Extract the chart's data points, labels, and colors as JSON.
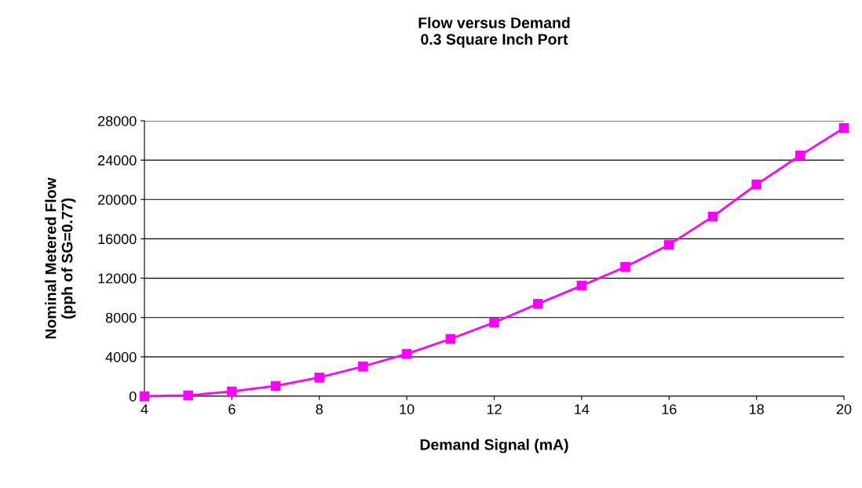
{
  "chart_data": {
    "type": "line",
    "title": "Flow versus Demand\n0.3 Square Inch Port",
    "xlabel": "Demand Signal (mA)",
    "ylabel": "Nominal Metered Flow\n(pph of SG=0.77)",
    "x": [
      4,
      5,
      6,
      7,
      8,
      9,
      10,
      11,
      12,
      13,
      14,
      15,
      16,
      17,
      18,
      19,
      20
    ],
    "series": [
      {
        "color": "#ff00ff",
        "values": [
          0,
          80,
          480,
          1040,
          1900,
          3030,
          4300,
          5820,
          7500,
          9400,
          11240,
          13150,
          15400,
          18260,
          21530,
          24480,
          27270
        ]
      }
    ],
    "xlim": [
      4,
      20
    ],
    "xticks": [
      4,
      6,
      8,
      10,
      12,
      14,
      16,
      18,
      20
    ],
    "ylim": [
      0,
      28000
    ],
    "yticks": [
      0,
      4000,
      8000,
      12000,
      16000,
      20000,
      24000,
      28000
    ],
    "grid": "y",
    "marker": "square",
    "line_style": "solid"
  }
}
